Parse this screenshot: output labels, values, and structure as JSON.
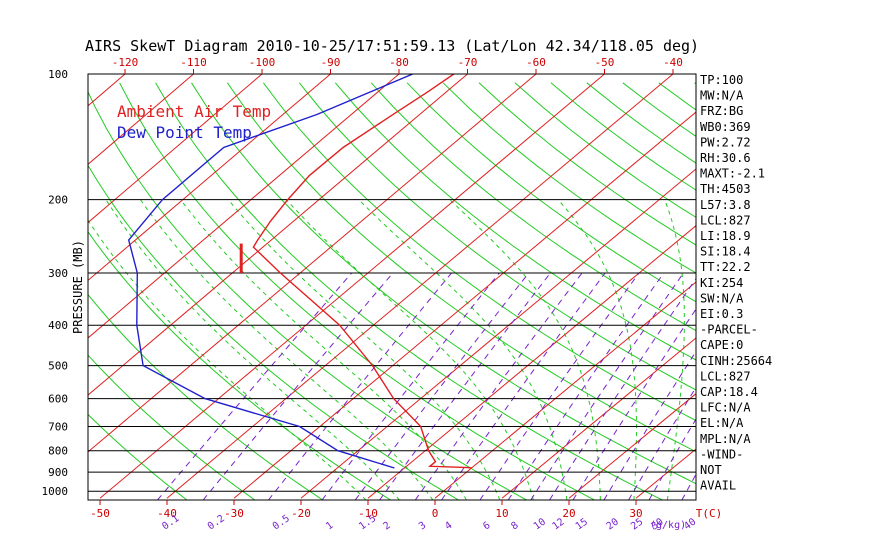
{
  "chart_data": {
    "type": "line",
    "title": "AIRS SkewT Diagram 2010-10-25/17:51:59.13 (Lat/Lon 42.34/118.05 deg)",
    "ylabel": "PRESSURE (MB)",
    "pressure_ticks": [
      {
        "p": 100,
        "label": "100"
      },
      {
        "p": 200,
        "label": "200"
      },
      {
        "p": 300,
        "label": "300"
      },
      {
        "p": 400,
        "label": "400"
      },
      {
        "p": 500,
        "label": "500"
      },
      {
        "p": 600,
        "label": "600"
      },
      {
        "p": 700,
        "label": "700"
      },
      {
        "p": 800,
        "label": "800"
      },
      {
        "p": 900,
        "label": "900"
      },
      {
        "p": 1000,
        "label": "1000"
      }
    ],
    "top_temp_ticks": [
      "-120",
      "-110",
      "-100",
      "-90",
      "-80",
      "-70",
      "-60",
      "-50",
      "-40"
    ],
    "bottom_temp_ticks": [
      "-50",
      "-40",
      "-30",
      "-20",
      "-10",
      "0",
      "10",
      "20",
      "30"
    ],
    "bottom_axis_label": "T(C)",
    "mixing_ratio_ticks": [
      "0.1",
      "0.2",
      "0.5",
      "1",
      "1.5",
      "2",
      "3",
      "4",
      "6",
      "8",
      "10",
      "12",
      "15",
      "20",
      "25",
      "30",
      "40"
    ],
    "mixing_ratio_unit": "(g/kg)",
    "series": [
      {
        "name": "Ambient Air Temp",
        "color": "#e02020",
        "points": [
          {
            "p": 100,
            "t": -72
          },
          {
            "p": 110,
            "t": -72.7
          },
          {
            "p": 125,
            "t": -73.9
          },
          {
            "p": 150,
            "t": -75.5
          },
          {
            "p": 175,
            "t": -75.6
          },
          {
            "p": 200,
            "t": -74.6
          },
          {
            "p": 225,
            "t": -73.4
          },
          {
            "p": 250,
            "t": -72.0
          },
          {
            "p": 260,
            "t": -71.4
          },
          {
            "p": 300,
            "t": -62.9
          },
          {
            "p": 400,
            "t": -45.0
          },
          {
            "p": 500,
            "t": -33.0
          },
          {
            "p": 600,
            "t": -24.0
          },
          {
            "p": 700,
            "t": -15.0
          },
          {
            "p": 800,
            "t": -9.5
          },
          {
            "p": 850,
            "t": -6.5
          },
          {
            "p": 872,
            "t": -6.5
          },
          {
            "p": 878,
            "t": -0.6
          },
          {
            "p": 880,
            "t": 0.0
          }
        ]
      },
      {
        "name": "Dew Point Temp",
        "color": "#2020cc",
        "points": [
          {
            "p": 100,
            "t": -78
          },
          {
            "p": 125,
            "t": -85
          },
          {
            "p": 150,
            "t": -93
          },
          {
            "p": 200,
            "t": -93
          },
          {
            "p": 250,
            "t": -91
          },
          {
            "p": 300,
            "t": -84
          },
          {
            "p": 400,
            "t": -75
          },
          {
            "p": 500,
            "t": -67
          },
          {
            "p": 600,
            "t": -52
          },
          {
            "p": 700,
            "t": -33
          },
          {
            "p": 800,
            "t": -23
          },
          {
            "p": 880,
            "t": -11.5
          }
        ]
      }
    ],
    "indices": [
      "TP:100",
      "MW:N/A",
      "FRZ:BG",
      "WB0:369",
      "PW:2.72",
      "RH:30.6",
      "MAXT:-2.1",
      "TH:4503",
      "L57:3.8",
      "LCL:827",
      "LI:18.9",
      "SI:18.4",
      "TT:22.2",
      "KI:254",
      "SW:N/A",
      "EI:0.3",
      "-PARCEL-",
      "CAPE:0",
      "CINH:25664",
      "LCL:827",
      "CAP:18.4",
      "LFC:N/A",
      "EL:N/A",
      "MPL:N/A",
      "-WIND-",
      "NOT",
      "AVAIL"
    ]
  },
  "colors": {
    "isotherm": "#e02020",
    "adiabat": "#22cc22",
    "mixing": "#7722cc",
    "isobar": "#000000",
    "temp_line": "#e02020",
    "dew_line": "#2020cc",
    "tick_red": "#cc0000"
  }
}
